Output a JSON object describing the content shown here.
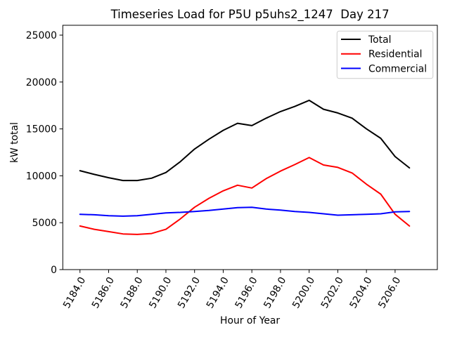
{
  "chart_data": {
    "type": "line",
    "title": "Timeseries Load for P5U p5uhs2_1247  Day 217",
    "xlabel": "Hour of Year",
    "ylabel": "kW total",
    "x": [
      5184,
      5185,
      5186,
      5187,
      5188,
      5189,
      5190,
      5191,
      5192,
      5193,
      5194,
      5195,
      5196,
      5197,
      5198,
      5199,
      5200,
      5201,
      5202,
      5203,
      5204,
      5205,
      5206,
      5207
    ],
    "series": [
      {
        "name": "Total",
        "color": "#000000",
        "values": [
          10550,
          10150,
          9800,
          9500,
          9500,
          9750,
          10350,
          11500,
          12850,
          13900,
          14850,
          15600,
          15350,
          16150,
          16850,
          17400,
          18050,
          17100,
          16700,
          16150,
          15000,
          14000,
          12050,
          10850
        ]
      },
      {
        "name": "Residential",
        "color": "#ff0000",
        "values": [
          4650,
          4300,
          4050,
          3800,
          3750,
          3850,
          4300,
          5400,
          6650,
          7600,
          8400,
          9000,
          8700,
          9700,
          10500,
          11200,
          11950,
          11150,
          10900,
          10300,
          9100,
          8050,
          5900,
          4650
        ]
      },
      {
        "name": "Commercial",
        "color": "#0000ff",
        "values": [
          5900,
          5850,
          5750,
          5700,
          5750,
          5900,
          6050,
          6100,
          6200,
          6300,
          6450,
          6600,
          6650,
          6450,
          6350,
          6200,
          6100,
          5950,
          5800,
          5850,
          5900,
          5950,
          6150,
          6200
        ]
      }
    ],
    "xticks": [
      5184,
      5186,
      5188,
      5190,
      5192,
      5194,
      5196,
      5198,
      5200,
      5202,
      5204,
      5206
    ],
    "xtick_labels": [
      "5184.0",
      "5186.0",
      "5188.0",
      "5190.0",
      "5192.0",
      "5194.0",
      "5196.0",
      "5198.0",
      "5200.0",
      "5202.0",
      "5204.0",
      "5206.0"
    ],
    "yticks": [
      0,
      5000,
      10000,
      15000,
      20000,
      25000
    ],
    "ytick_labels": [
      "0",
      "5000",
      "10000",
      "15000",
      "20000",
      "25000"
    ],
    "xlim": [
      5182.8,
      5208.95
    ],
    "ylim": [
      0,
      26050
    ],
    "grid": false,
    "legend": {
      "position": "upper right",
      "entries": [
        "Total",
        "Residential",
        "Commercial"
      ]
    },
    "frame_color": "#000000",
    "legend_border_color": "#cccccc"
  }
}
